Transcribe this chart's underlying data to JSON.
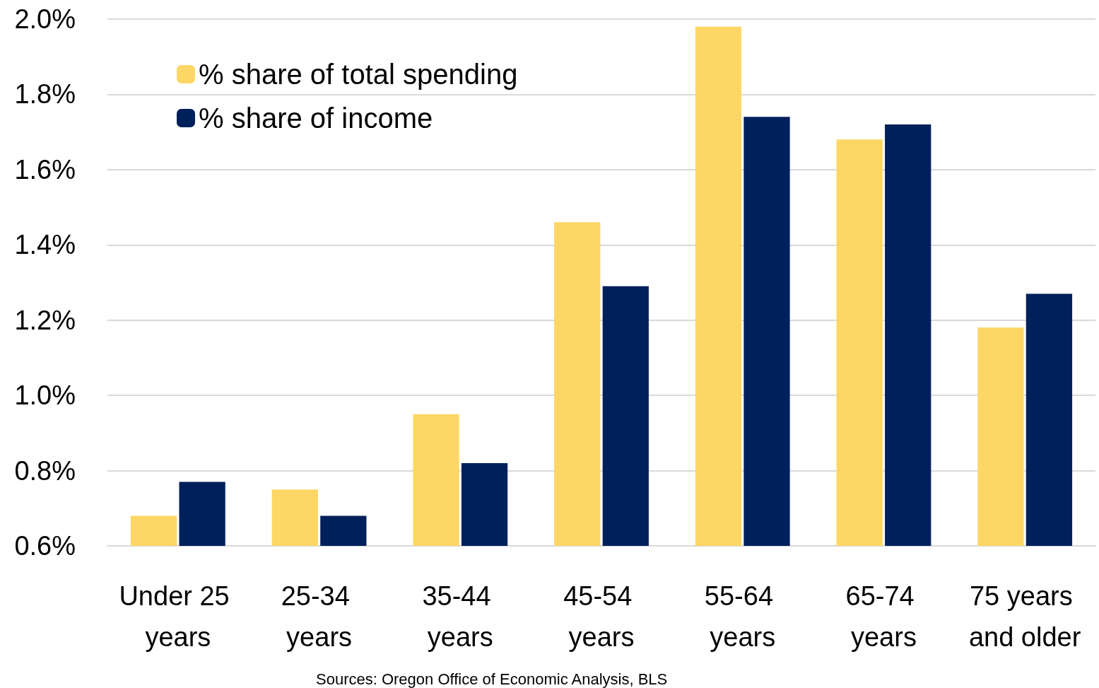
{
  "chart_data": {
    "type": "bar",
    "categories": [
      "Under 25 years",
      "25-34 years",
      "35-44 years",
      "45-54 years",
      "55-64 years",
      "65-74 years",
      "75 years and older"
    ],
    "series": [
      {
        "name": "% share of total spending",
        "color": "#fdd766",
        "values": [
          0.68,
          0.75,
          0.95,
          1.46,
          1.98,
          1.68,
          1.18
        ]
      },
      {
        "name": "% share of income",
        "color": "#00205b",
        "values": [
          0.77,
          0.68,
          0.82,
          1.29,
          1.74,
          1.72,
          1.27
        ]
      }
    ],
    "ylim": [
      0.6,
      2.0
    ],
    "yticks": [
      {
        "value": 0.6,
        "label": "0.6%"
      },
      {
        "value": 0.8,
        "label": "0.8%"
      },
      {
        "value": 1.0,
        "label": "1.0%"
      },
      {
        "value": 1.2,
        "label": "1.2%"
      },
      {
        "value": 1.4,
        "label": "1.4%"
      },
      {
        "value": 1.6,
        "label": "1.6%"
      },
      {
        "value": 1.8,
        "label": "1.8%"
      },
      {
        "value": 2.0,
        "label": "2.0%"
      }
    ],
    "grid": "y",
    "legend": "top left",
    "annotations": [
      "Sources: Oregon Office of Economic Analysis, BLS"
    ]
  }
}
